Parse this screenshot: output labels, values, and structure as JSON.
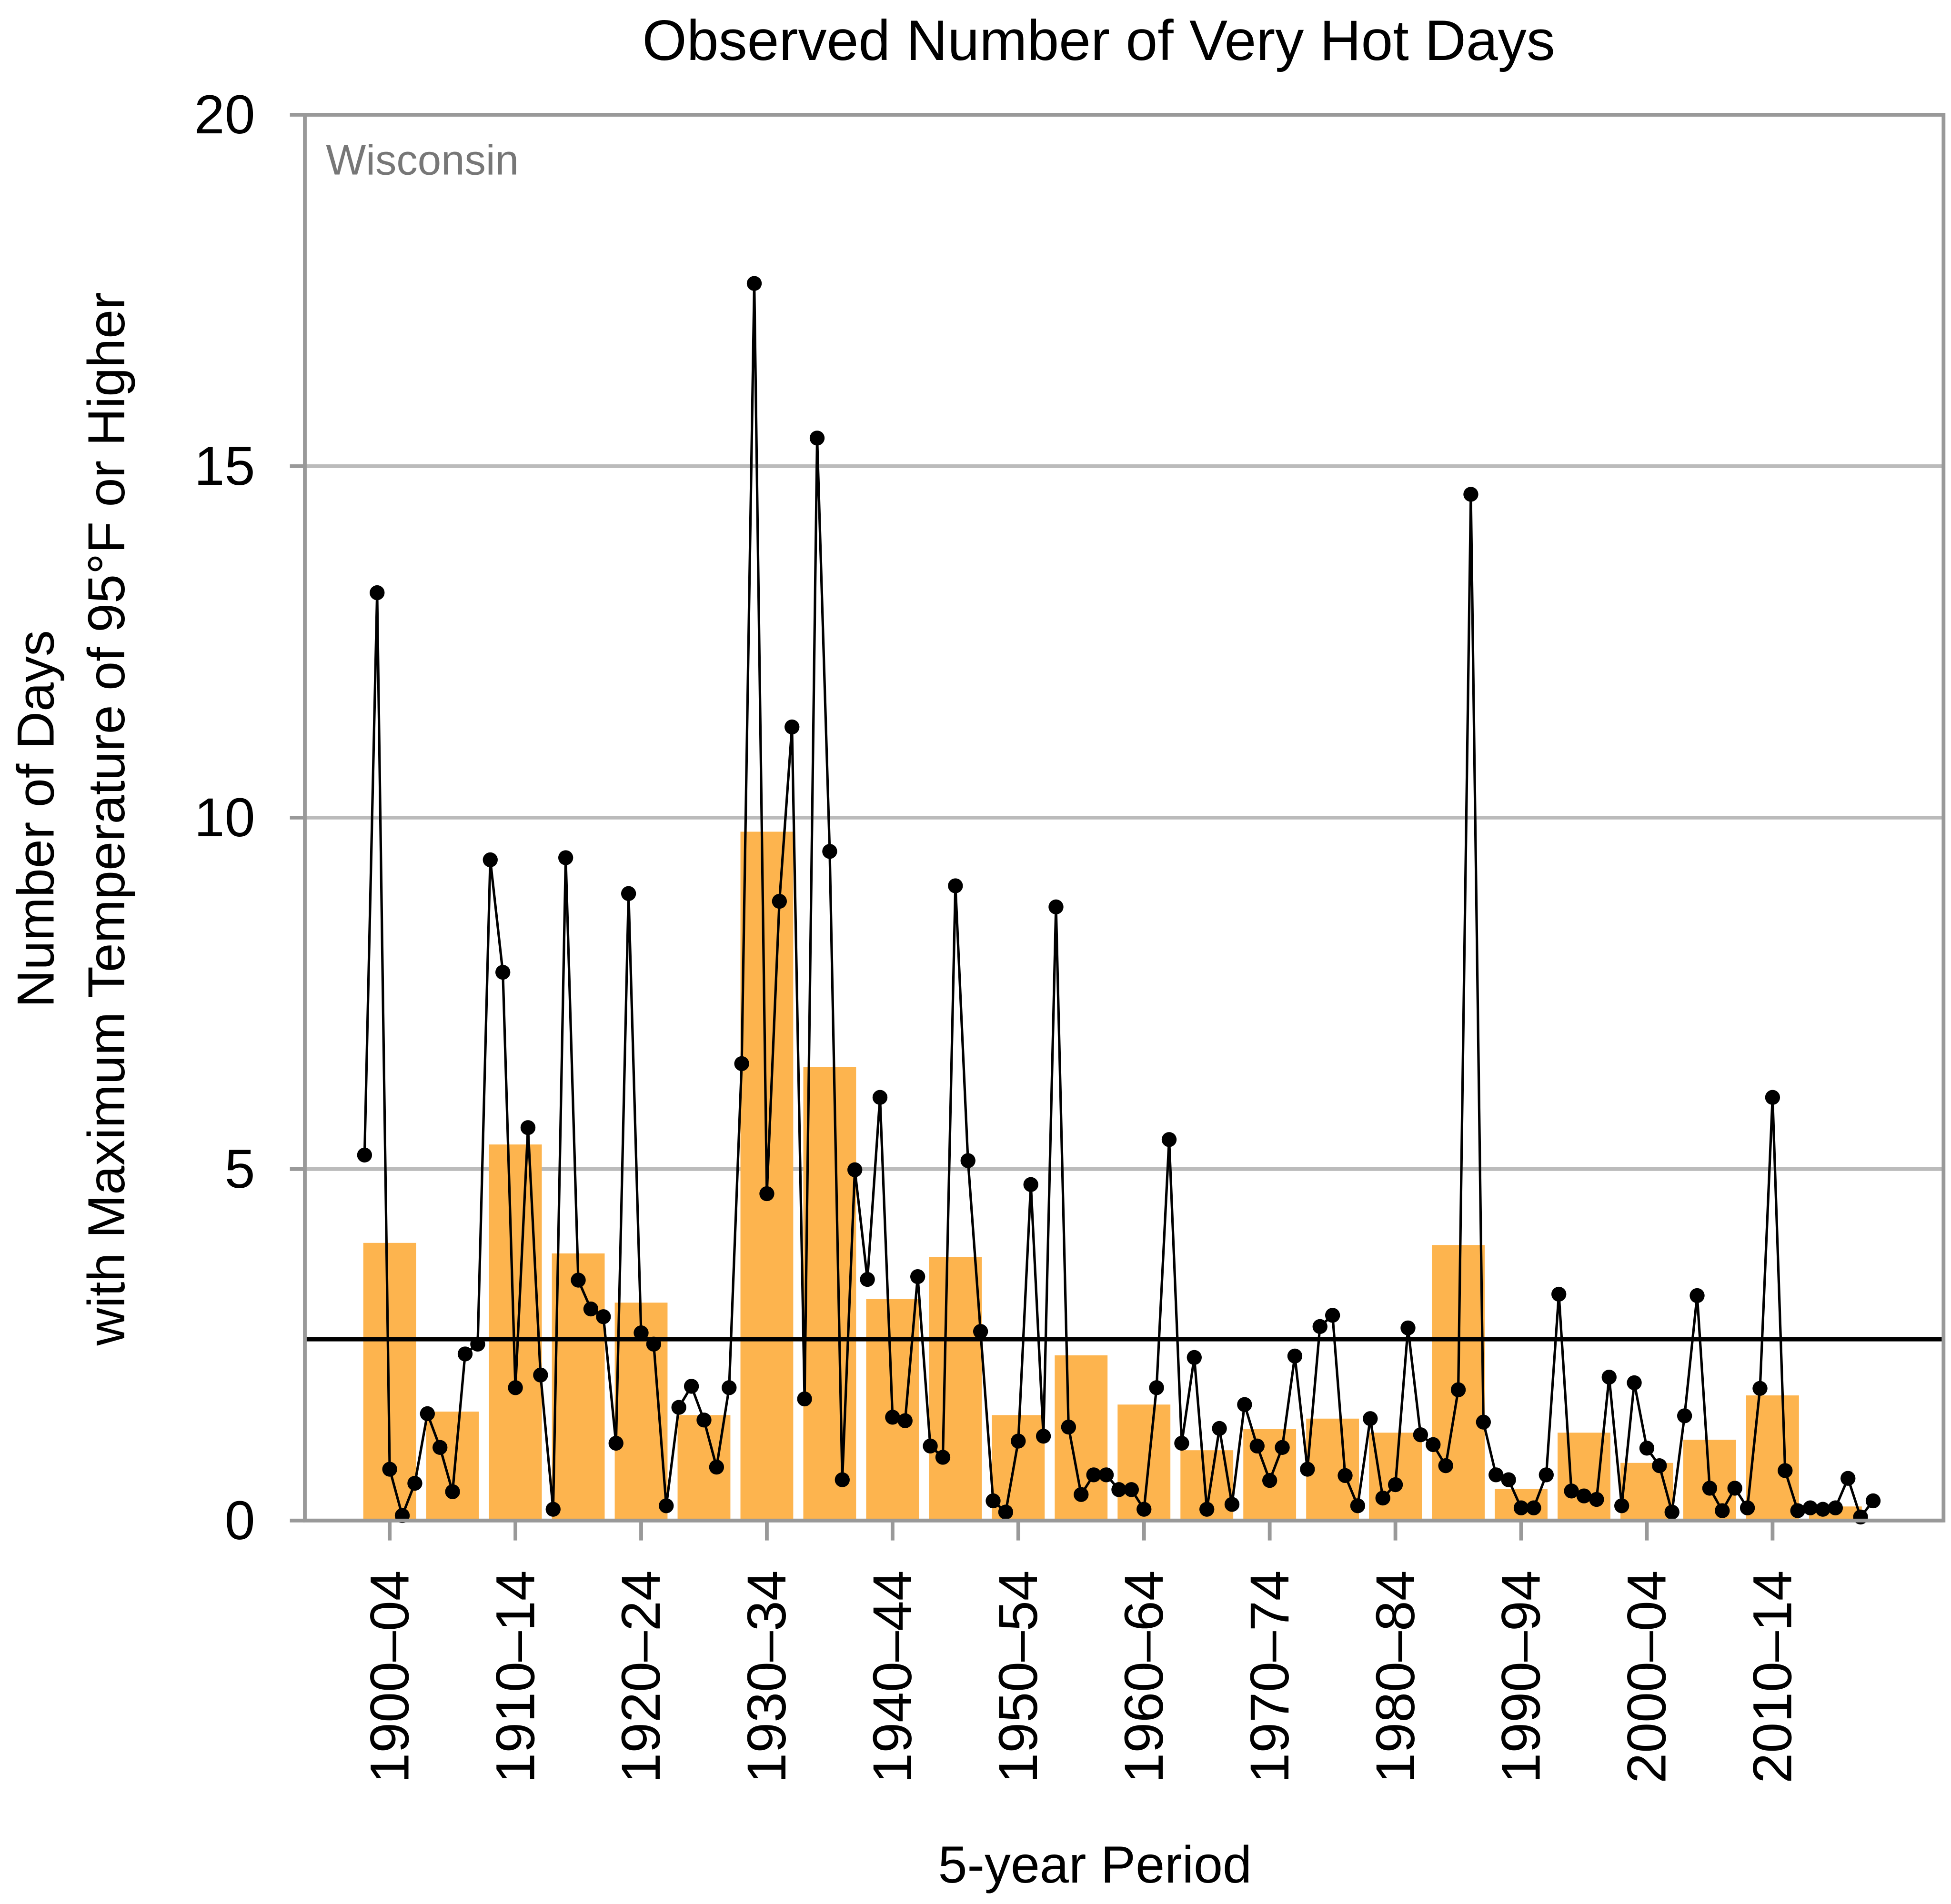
{
  "chart_data": {
    "type": "bar",
    "title": "Observed Number of Very Hot Days",
    "annotation": "Wisconsin",
    "xlabel": "5-year Period",
    "ylabel": [
      "Number of Days",
      "with Maximum Temperature of 95°F or Higher"
    ],
    "categories": [
      "1900–04",
      null,
      "1910–14",
      null,
      "1920–24",
      null,
      "1930–34",
      null,
      "1940–44",
      null,
      "1950–54",
      null,
      "1960–64",
      null,
      "1970–74",
      null,
      "1980–84",
      null,
      "1990–94",
      null,
      "2000–04",
      null,
      "2010–14",
      null
    ],
    "values": [
      3.95,
      1.55,
      5.35,
      3.8,
      3.1,
      1.5,
      9.8,
      6.45,
      3.15,
      3.75,
      1.5,
      2.35,
      1.65,
      1.0,
      1.3,
      1.45,
      1.25,
      3.92,
      0.45,
      1.25,
      0.82,
      1.15,
      1.78,
      0.2
    ],
    "color": "#fdb44e",
    "line": {
      "type": "line",
      "color": "#000000",
      "x": [
        1900,
        1901,
        1902,
        1903,
        1904,
        1905,
        1906,
        1907,
        1908,
        1909,
        1910,
        1911,
        1912,
        1913,
        1914,
        1915,
        1916,
        1917,
        1918,
        1919,
        1920,
        1921,
        1922,
        1923,
        1924,
        1925,
        1926,
        1927,
        1928,
        1929,
        1930,
        1931,
        1932,
        1933,
        1934,
        1935,
        1936,
        1937,
        1938,
        1939,
        1940,
        1941,
        1942,
        1943,
        1944,
        1945,
        1946,
        1947,
        1948,
        1949,
        1950,
        1951,
        1952,
        1953,
        1954,
        1955,
        1956,
        1957,
        1958,
        1959,
        1960,
        1961,
        1962,
        1963,
        1964,
        1965,
        1966,
        1967,
        1968,
        1969,
        1970,
        1971,
        1972,
        1973,
        1974,
        1975,
        1976,
        1977,
        1978,
        1979,
        1980,
        1981,
        1982,
        1983,
        1984,
        1985,
        1986,
        1987,
        1988,
        1989,
        1990,
        1991,
        1992,
        1993,
        1994,
        1995,
        1996,
        1997,
        1998,
        1999,
        2000,
        2001,
        2002,
        2003,
        2004,
        2005,
        2006,
        2007,
        2008,
        2009,
        2010,
        2011,
        2012,
        2013,
        2014,
        2015,
        2016,
        2017,
        2018,
        2019,
        2020
      ],
      "values": [
        5.2,
        13.2,
        0.73,
        0.07,
        0.53,
        1.52,
        1.04,
        0.41,
        2.37,
        2.51,
        9.4,
        7.8,
        1.89,
        5.59,
        2.07,
        0.16,
        9.43,
        3.42,
        3.01,
        2.9,
        1.1,
        8.92,
        2.67,
        2.51,
        0.21,
        1.61,
        1.91,
        1.43,
        0.76,
        1.89,
        6.5,
        17.6,
        4.65,
        8.81,
        11.29,
        1.73,
        15.4,
        9.52,
        0.58,
        4.99,
        3.43,
        6.02,
        1.47,
        1.42,
        3.47,
        1.06,
        0.9,
        9.03,
        5.12,
        2.69,
        0.28,
        0.12,
        1.13,
        4.78,
        1.2,
        8.73,
        1.33,
        0.37,
        0.65,
        0.65,
        0.44,
        0.44,
        0.16,
        1.89,
        5.42,
        1.1,
        2.32,
        0.16,
        1.31,
        0.23,
        1.65,
        1.06,
        0.57,
        1.04,
        2.34,
        0.73,
        2.76,
        2.92,
        0.64,
        0.21,
        1.45,
        0.32,
        0.51,
        2.74,
        1.22,
        1.08,
        0.78,
        1.86,
        14.6,
        1.4,
        0.65,
        0.58,
        0.18,
        0.18,
        0.65,
        3.22,
        0.42,
        0.35,
        0.3,
        2.04,
        0.21,
        1.96,
        1.03,
        0.78,
        0.12,
        1.49,
        3.2,
        0.46,
        0.14,
        0.46,
        0.18,
        1.88,
        6.02,
        0.71,
        0.14,
        0.18,
        0.16,
        0.18,
        0.6,
        0.05,
        0.28
      ]
    },
    "hline": 2.58,
    "xlim": [
      1895.25,
      2025.6
    ],
    "ylim": [
      0,
      20
    ],
    "yticks": [
      0,
      5,
      10,
      15,
      20
    ],
    "grid": true
  }
}
